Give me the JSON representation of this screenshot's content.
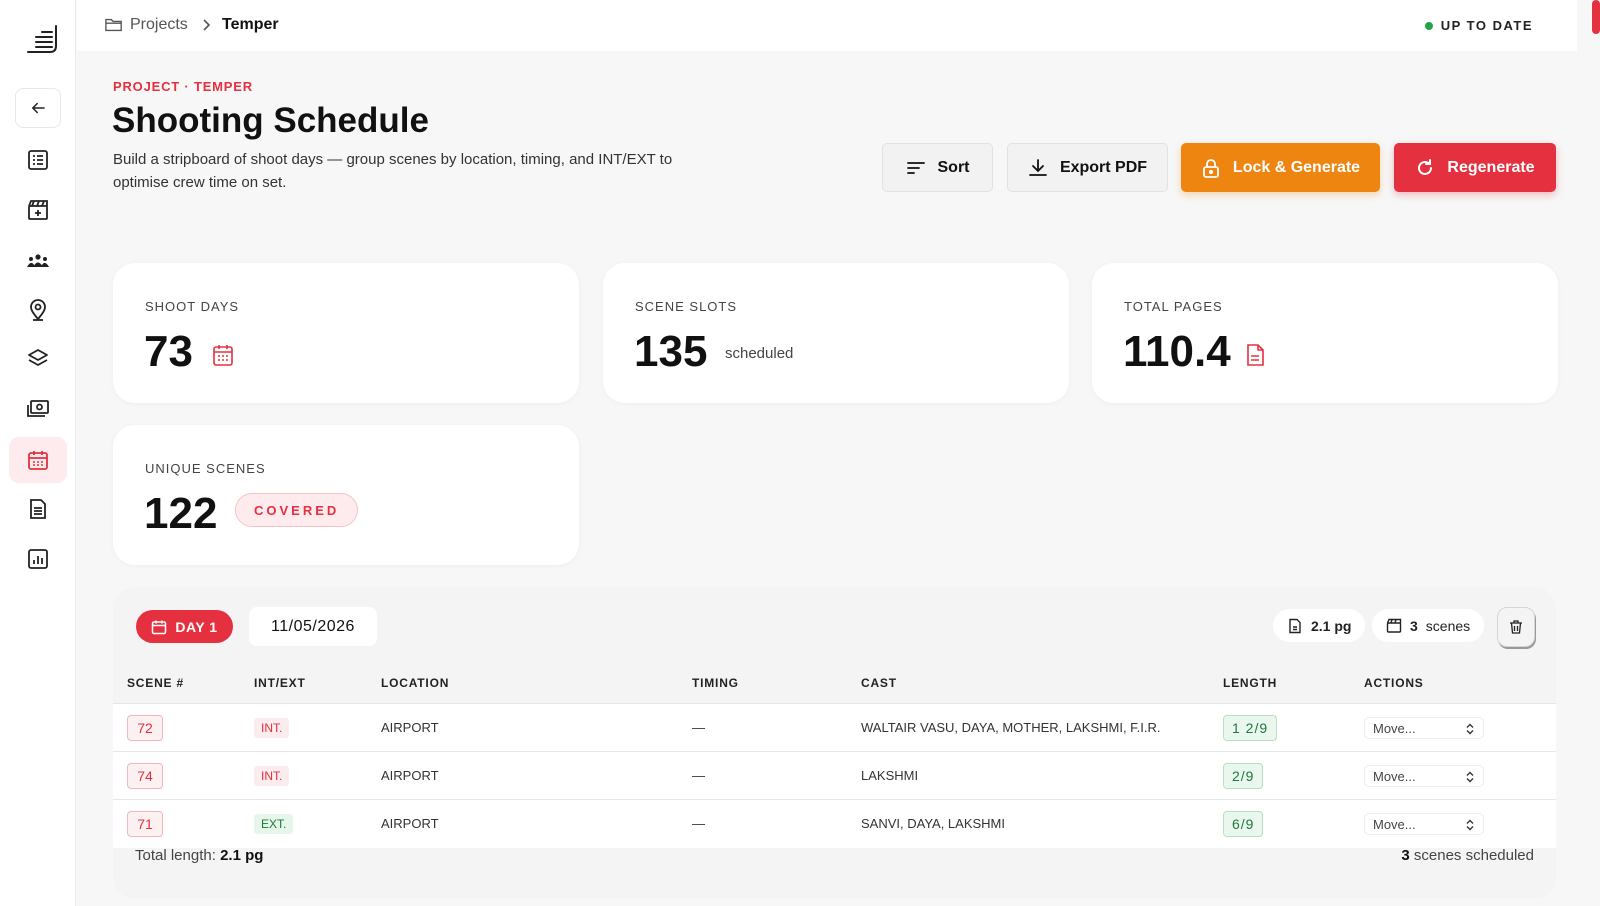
{
  "breadcrumb": {
    "root": "Projects",
    "current": "Temper"
  },
  "status": {
    "label": "UP TO DATE",
    "color": "#22a547"
  },
  "header": {
    "eyebrow": "PROJECT · TEMPER",
    "title": "Shooting Schedule",
    "description": "Build a stripboard of shoot days — group scenes by location, timing, and INT/EXT to optimise crew time on set."
  },
  "actions": {
    "sort": "Sort",
    "export": "Export PDF",
    "lock": "Lock & Generate",
    "regenerate": "Regenerate"
  },
  "stats": {
    "shoot_days": {
      "label": "SHOOT DAYS",
      "value": "73"
    },
    "scene_slots": {
      "label": "SCENE SLOTS",
      "value": "135",
      "suffix": "scheduled"
    },
    "total_pages": {
      "label": "TOTAL PAGES",
      "value": "110.4"
    },
    "unique_scenes": {
      "label": "UNIQUE SCENES",
      "value": "122",
      "badge": "COVERED"
    }
  },
  "day": {
    "badge": "DAY 1",
    "date": "11/05/2026",
    "pages": "2.1 pg",
    "scene_count": "3",
    "scene_word": "scenes",
    "columns": {
      "scene": "SCENE #",
      "intext": "INT/EXT",
      "location": "LOCATION",
      "timing": "TIMING",
      "cast": "CAST",
      "length": "LENGTH",
      "actions": "ACTIONS"
    },
    "rows": [
      {
        "scene": "72",
        "intext": "INT.",
        "location": "AIRPORT",
        "timing": "—",
        "cast": "WALTAIR VASU, DAYA, MOTHER, LAKSHMI, F.I.R.",
        "length": "1 2/9",
        "action": "Move..."
      },
      {
        "scene": "74",
        "intext": "INT.",
        "location": "AIRPORT",
        "timing": "—",
        "cast": "LAKSHMI",
        "length": "2/9",
        "action": "Move..."
      },
      {
        "scene": "71",
        "intext": "EXT.",
        "location": "AIRPORT",
        "timing": "—",
        "cast": "SANVI, DAYA, LAKSHMI",
        "length": "6/9",
        "action": "Move..."
      }
    ],
    "footer": {
      "total_label": "Total length:",
      "total_value": "2.1 pg",
      "scheduled_count": "3",
      "scheduled_label": "scenes scheduled"
    }
  },
  "colors": {
    "accent": "#e5303f",
    "orange": "#ee8510",
    "green": "#1e7a3a"
  }
}
